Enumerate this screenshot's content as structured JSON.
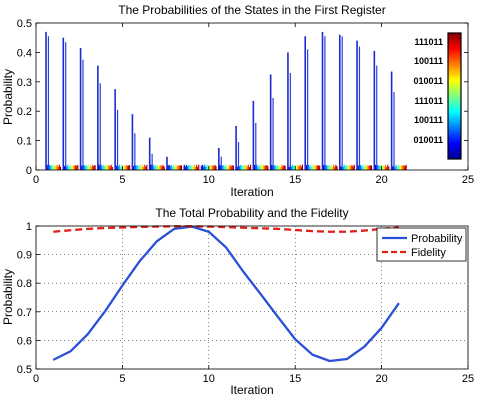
{
  "chart_data": [
    {
      "type": "bar",
      "title": "The Probabilities of the States in the First Register",
      "xlabel": "Iteration",
      "ylabel": "Probability",
      "xlim": [
        0,
        25
      ],
      "ylim": [
        0,
        0.5
      ],
      "xticks": [
        "0",
        "5",
        "10",
        "15",
        "20",
        "25"
      ],
      "yticks": [
        "0",
        "0.1",
        "0.2",
        "0.3",
        "0.4",
        "0.5"
      ],
      "grid": false,
      "colorbar_labels": [
        "111011",
        "100111",
        "010011",
        "111011",
        "100111",
        "010011"
      ],
      "iterations": [
        1,
        2,
        3,
        4,
        5,
        6,
        7,
        8,
        9,
        10,
        11,
        12,
        13,
        14,
        15,
        16,
        17,
        18,
        19,
        20,
        21
      ],
      "peak_values": [
        0.47,
        0.45,
        0.415,
        0.355,
        0.275,
        0.19,
        0.11,
        0.045,
        0.012,
        0.015,
        0.075,
        0.15,
        0.235,
        0.325,
        0.4,
        0.455,
        0.47,
        0.46,
        0.44,
        0.405,
        0.335
      ],
      "secondary_values": [
        0.455,
        0.435,
        0.375,
        0.295,
        0.205,
        0.125,
        0.055,
        0.018,
        0.006,
        0.01,
        0.045,
        0.095,
        0.16,
        0.245,
        0.33,
        0.41,
        0.455,
        0.455,
        0.42,
        0.355,
        0.265
      ],
      "background_level": 0.018
    },
    {
      "type": "line",
      "title": "The Total Probability and the Fidelity",
      "xlabel": "Iteration",
      "ylabel": "Probability",
      "xlim": [
        0,
        25
      ],
      "ylim": [
        0.5,
        1
      ],
      "xticks": [
        "0",
        "5",
        "10",
        "15",
        "20",
        "25"
      ],
      "yticks": [
        "0.5",
        "0.6",
        "0.7",
        "0.8",
        "0.9",
        "1"
      ],
      "grid": true,
      "legend_position": "top-right",
      "x": [
        1,
        2,
        3,
        4,
        5,
        6,
        7,
        8,
        9,
        10,
        11,
        12,
        13,
        14,
        15,
        16,
        17,
        18,
        19,
        20,
        21
      ],
      "series": [
        {
          "name": "Probability",
          "color": "#2a4fd8",
          "style": "solid",
          "values": [
            0.532,
            0.562,
            0.622,
            0.702,
            0.792,
            0.877,
            0.947,
            0.99,
            0.998,
            0.98,
            0.925,
            0.84,
            0.762,
            0.682,
            0.604,
            0.55,
            0.528,
            0.535,
            0.578,
            0.644,
            0.73
          ]
        },
        {
          "name": "Fidelity",
          "color": "#e0201a",
          "style": "dashed",
          "values": [
            0.98,
            0.985,
            0.99,
            0.993,
            0.995,
            0.997,
            0.998,
            0.999,
            0.999,
            0.998,
            0.996,
            0.994,
            0.992,
            0.99,
            0.986,
            0.982,
            0.98,
            0.98,
            0.984,
            0.99,
            0.995
          ]
        }
      ]
    }
  ]
}
